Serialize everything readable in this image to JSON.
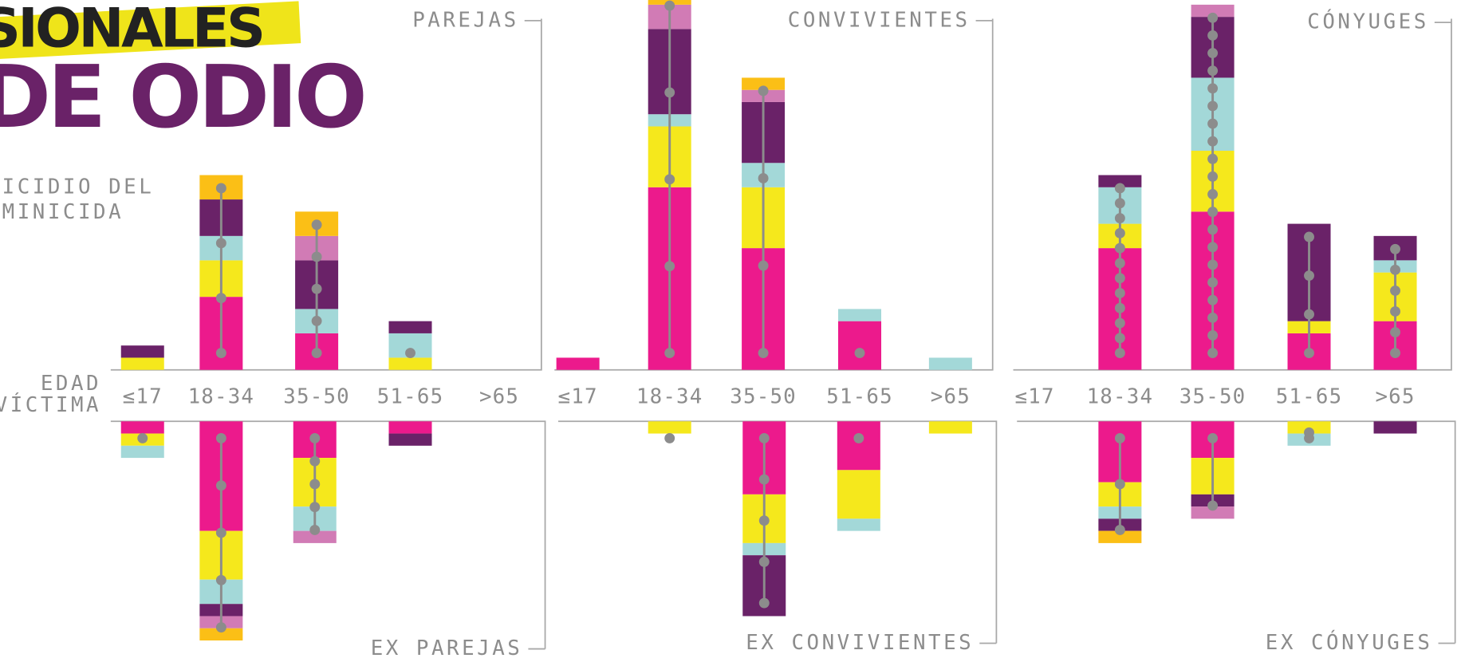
{
  "header": {
    "title_lines": [
      "SIONALES",
      "DE ODIO"
    ],
    "subtitle_lines": [
      "ICIDIO DEL",
      "MINICIDA"
    ],
    "age_axis_label": [
      "EDAD",
      "VÍCTIMA"
    ]
  },
  "chart_data": [
    {
      "type": "bar",
      "title": "PAREJAS",
      "categories": [
        "≤17",
        "18-34",
        "35-50",
        "51-65",
        ">65"
      ],
      "series": [
        {
          "color": "#ec1a8c",
          "values": [
            0,
            6,
            3,
            0,
            0
          ]
        },
        {
          "color": "#f5e81c",
          "values": [
            1,
            3,
            0,
            1,
            0
          ]
        },
        {
          "color": "#a3d8d8",
          "values": [
            0,
            2,
            2,
            2,
            0
          ]
        },
        {
          "color": "#6a2268",
          "values": [
            1,
            3,
            4,
            1,
            0
          ]
        },
        {
          "color": "#d17bb5",
          "values": [
            0,
            0,
            2,
            0,
            0
          ]
        },
        {
          "color": "#fbbf16",
          "values": [
            0,
            2,
            2,
            0,
            0
          ]
        }
      ],
      "dots": [
        0,
        4,
        5,
        1,
        0
      ]
    },
    {
      "type": "bar",
      "title": "CONVIVIENTES",
      "categories": [
        "≤17",
        "18-34",
        "35-50",
        "51-65",
        ">65"
      ],
      "series": [
        {
          "color": "#ec1a8c",
          "values": [
            1,
            15,
            10,
            4,
            0
          ]
        },
        {
          "color": "#f5e81c",
          "values": [
            0,
            5,
            5,
            0,
            0
          ]
        },
        {
          "color": "#a3d8d8",
          "values": [
            0,
            1,
            2,
            1,
            1
          ]
        },
        {
          "color": "#6a2268",
          "values": [
            0,
            7,
            5,
            0,
            0
          ]
        },
        {
          "color": "#d17bb5",
          "values": [
            0,
            2,
            1,
            0,
            0
          ]
        },
        {
          "color": "#fbbf16",
          "values": [
            0,
            1,
            1,
            0,
            0
          ]
        }
      ],
      "dots": [
        0,
        5,
        4,
        1,
        0
      ]
    },
    {
      "type": "bar",
      "title": "CÓNYUGES",
      "categories": [
        "≤17",
        "18-34",
        "35-50",
        "51-65",
        ">65"
      ],
      "series": [
        {
          "color": "#ec1a8c",
          "values": [
            0,
            10,
            13,
            3,
            4
          ]
        },
        {
          "color": "#f5e81c",
          "values": [
            0,
            2,
            5,
            1,
            4
          ]
        },
        {
          "color": "#a3d8d8",
          "values": [
            0,
            3,
            6,
            0,
            1
          ]
        },
        {
          "color": "#6a2268",
          "values": [
            0,
            1,
            5,
            8,
            2
          ]
        },
        {
          "color": "#d17bb5",
          "values": [
            0,
            0,
            1,
            0,
            0
          ]
        },
        {
          "color": "#fbbf16",
          "values": [
            0,
            0,
            0,
            0,
            0
          ]
        }
      ],
      "dots": [
        0,
        12,
        20,
        4,
        6
      ]
    },
    {
      "type": "bar",
      "title": "EX PAREJAS",
      "series": [
        {
          "color": "#ec1a8c",
          "values": [
            1,
            9,
            3,
            1,
            0
          ]
        },
        {
          "color": "#f5e81c",
          "values": [
            1,
            4,
            4,
            0,
            0
          ]
        },
        {
          "color": "#a3d8d8",
          "values": [
            1,
            2,
            2,
            0,
            0
          ]
        },
        {
          "color": "#6a2268",
          "values": [
            0,
            1,
            0,
            1,
            0
          ]
        },
        {
          "color": "#d17bb5",
          "values": [
            0,
            1,
            1,
            0,
            0
          ]
        },
        {
          "color": "#fbbf16",
          "values": [
            0,
            1,
            0,
            0,
            0
          ]
        }
      ],
      "dots": [
        1,
        5,
        5,
        0,
        0
      ]
    },
    {
      "type": "bar",
      "title": "EX CONVIVIENTES",
      "series": [
        {
          "color": "#ec1a8c",
          "values": [
            0,
            0,
            6,
            4,
            0
          ]
        },
        {
          "color": "#f5e81c",
          "values": [
            0,
            1,
            4,
            4,
            1
          ]
        },
        {
          "color": "#a3d8d8",
          "values": [
            0,
            0,
            1,
            1,
            0
          ]
        },
        {
          "color": "#6a2268",
          "values": [
            0,
            0,
            5,
            0,
            0
          ]
        },
        {
          "color": "#d17bb5",
          "values": [
            0,
            0,
            0,
            0,
            0
          ]
        },
        {
          "color": "#fbbf16",
          "values": [
            0,
            0,
            0,
            0,
            0
          ]
        }
      ],
      "dots": [
        0,
        1,
        5,
        1,
        0
      ]
    },
    {
      "type": "bar",
      "title": "EX CÓNYUGES",
      "series": [
        {
          "color": "#ec1a8c",
          "values": [
            0,
            5,
            3,
            0,
            0
          ]
        },
        {
          "color": "#f5e81c",
          "values": [
            0,
            2,
            3,
            1,
            0
          ]
        },
        {
          "color": "#a3d8d8",
          "values": [
            0,
            1,
            0,
            1,
            0
          ]
        },
        {
          "color": "#6a2268",
          "values": [
            0,
            1,
            1,
            0,
            1
          ]
        },
        {
          "color": "#d17bb5",
          "values": [
            0,
            0,
            1,
            0,
            0
          ]
        },
        {
          "color": "#fbbf16",
          "values": [
            0,
            1,
            0,
            0,
            0
          ]
        }
      ],
      "dots": [
        0,
        3,
        2,
        2,
        0
      ]
    }
  ]
}
